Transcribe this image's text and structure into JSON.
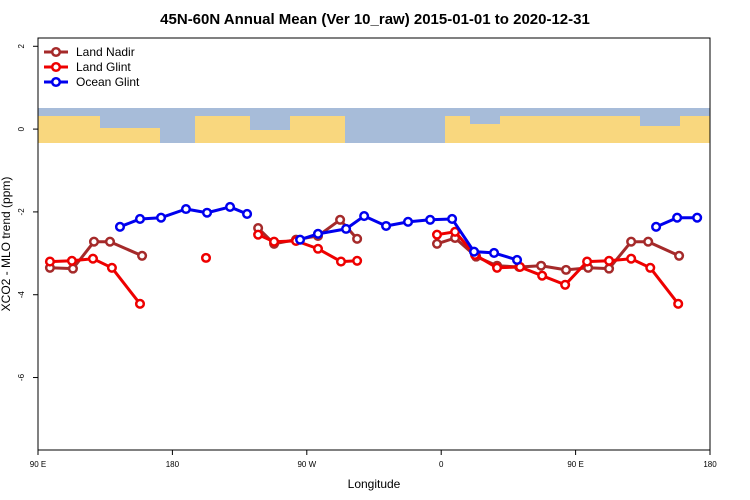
{
  "chart_data": {
    "type": "line",
    "title": "45N-60N Annual Mean (Ver 10_raw)   2015-01-01 to 2020-12-31",
    "x_label": "Longitude",
    "y_label": "XCO2 - MLO trend (ppm)",
    "xlim": [
      90,
      540
    ],
    "ylim": [
      -7.75,
      2.2
    ],
    "xticks": [
      {
        "value": 90,
        "label": "90 E"
      },
      180,
      {
        "value": 270,
        "label": "90 W"
      },
      {
        "value": 360,
        "label": "0"
      },
      {
        "value": 450,
        "label": "90 E"
      },
      {
        "value": 540,
        "label": "180"
      }
    ],
    "yticks": [
      2,
      0,
      -2,
      -4,
      -6
    ],
    "legend": "top-left",
    "series": [
      {
        "name": "Land Nadir",
        "color": "#a52a2a",
        "x": [
          98,
          113.4,
          127.5,
          138.2,
          159.7,
          null,
          237.4,
          248.1,
          262.8,
          277.5,
          292.3,
          303.7,
          null,
          357.2,
          369.3,
          383.4,
          397.4,
          412.2,
          426.9,
          443.6,
          458.4,
          472.4,
          487.2,
          498.6,
          519.3
        ],
        "values": [
          -3.35,
          -3.37,
          -2.72,
          -2.72,
          -3.06,
          null,
          -2.39,
          -2.77,
          -2.67,
          -2.58,
          -2.19,
          -2.65,
          null,
          -2.77,
          -2.63,
          -3.08,
          -3.3,
          -3.33,
          -3.3,
          -3.4,
          -3.35,
          -3.37,
          -2.72,
          -2.72,
          -3.06
        ]
      },
      {
        "name": "Land Glint",
        "color": "#ee0000",
        "x": [
          98,
          112.7,
          126.8,
          139.5,
          158.3,
          null,
          202.5,
          null,
          237.4,
          248.1,
          262.8,
          277.5,
          292.9,
          303.7,
          null,
          357.2,
          369.3,
          382.7,
          397.4,
          412.8,
          427.6,
          443,
          457.7,
          472.4,
          487.2,
          500,
          518.7
        ],
        "values": [
          -3.2,
          -3.18,
          -3.13,
          -3.35,
          -4.22,
          null,
          -3.11,
          null,
          -2.55,
          -2.72,
          -2.7,
          -2.89,
          -3.2,
          -3.18,
          null,
          -2.55,
          -2.48,
          -3.04,
          -3.35,
          -3.33,
          -3.54,
          -3.76,
          -3.2,
          -3.18,
          -3.13,
          -3.35,
          -4.22
        ]
      },
      {
        "name": "Ocean Glint",
        "color": "#0000ee",
        "x": [
          144.9,
          158.3,
          172.4,
          189.1,
          203.2,
          218.6,
          230,
          null,
          265.5,
          277.5,
          296.3,
          308.4,
          323.1,
          337.8,
          352.6,
          367.3,
          382,
          395.4,
          410.8,
          null,
          503.9,
          518,
          531.4
        ],
        "values": [
          -2.36,
          -2.17,
          -2.14,
          -1.93,
          -2.02,
          -1.88,
          -2.05,
          null,
          -2.67,
          -2.53,
          -2.41,
          -2.1,
          -2.34,
          -2.24,
          -2.19,
          -2.17,
          -2.96,
          -2.99,
          -3.16,
          null,
          -2.36,
          -2.14,
          -2.14
        ]
      }
    ]
  }
}
